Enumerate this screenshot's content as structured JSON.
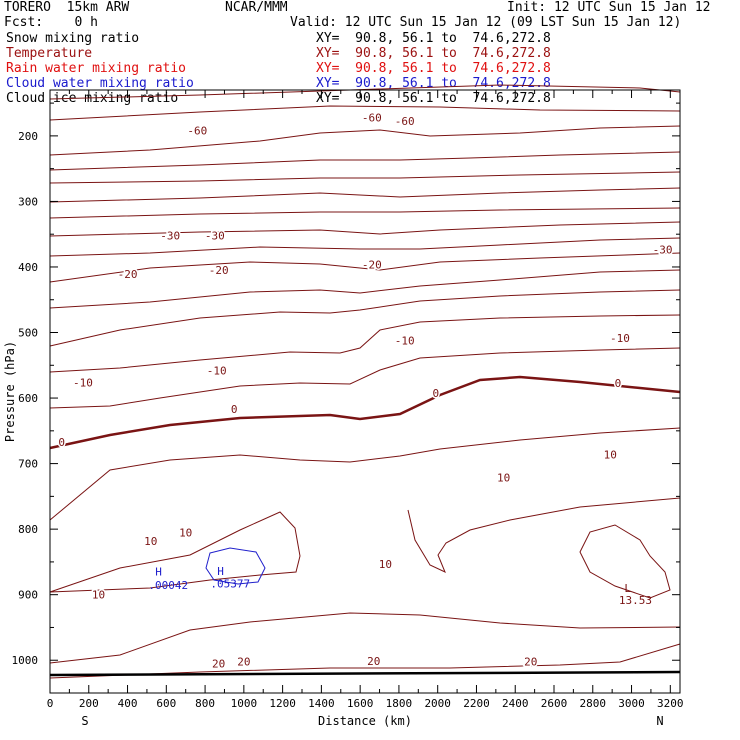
{
  "header": {
    "model": "TORERO  15km ARW",
    "org": "NCAR/MMM",
    "init": "Init: 12 UTC Sun 15 Jan 12",
    "fcst": "Fcst:    0 h",
    "valid": "Valid: 12 UTC Sun 15 Jan 12 (09 LST Sun 15 Jan 12)",
    "fields": [
      {
        "name": "Snow mixing ratio",
        "xy": "XY=  90.8, 56.1 to  74.6,272.8",
        "color": "#000000"
      },
      {
        "name": "Temperature",
        "xy": "XY=  90.8, 56.1 to  74.6,272.8",
        "color": "#9b1010"
      },
      {
        "name": "Rain water mixing ratio",
        "xy": "XY=  90.8, 56.1 to  74.6,272.8",
        "color": "#e01010"
      },
      {
        "name": "Cloud water mixing ratio",
        "xy": "XY=  90.8, 56.1 to  74.6,272.8",
        "color": "#1a1acd"
      },
      {
        "name": "Cloud ice mixing ratio",
        "xy": "XY=  90.8, 56.1 to  74.6,272.8",
        "color": "#000000"
      }
    ]
  },
  "chart_data": {
    "type": "contour",
    "xlabel": "Distance (km)",
    "ylabel": "Pressure (hPa)",
    "xlim": [
      0,
      3250
    ],
    "ylim": [
      1050,
      130
    ],
    "x_ticks": [
      "0",
      "200",
      "400",
      "600",
      "800",
      "1000",
      "1200",
      "1400",
      "1600",
      "1800",
      "2000",
      "2200",
      "2400",
      "2600",
      "2800",
      "3000",
      "3200"
    ],
    "y_ticks": [
      "200",
      "300",
      "400",
      "500",
      "600",
      "700",
      "800",
      "900",
      "1000"
    ],
    "x_endpoints": {
      "left": "S",
      "right": "N"
    },
    "colors": {
      "temperature": "#7a1414",
      "cloud_water": "#2020cc",
      "snow": "#000000"
    },
    "temperature_contour_labels": [
      {
        "text": "-60",
        "x": 760,
        "p": 192
      },
      {
        "text": "-60",
        "x": 1660,
        "p": 172
      },
      {
        "text": "-60",
        "x": 1830,
        "p": 177
      },
      {
        "text": "-30",
        "x": 620,
        "p": 352
      },
      {
        "text": "-30",
        "x": 850,
        "p": 352
      },
      {
        "text": "-30",
        "x": 3160,
        "p": 373
      },
      {
        "text": "-20",
        "x": 400,
        "p": 411
      },
      {
        "text": "-20",
        "x": 870,
        "p": 405
      },
      {
        "text": "-20",
        "x": 1660,
        "p": 396
      },
      {
        "text": "-10",
        "x": 1830,
        "p": 512
      },
      {
        "text": "-10",
        "x": 2940,
        "p": 508
      },
      {
        "text": "-10",
        "x": 860,
        "p": 558
      },
      {
        "text": "-10",
        "x": 170,
        "p": 576
      },
      {
        "text": "0",
        "x": 950,
        "p": 617
      },
      {
        "text": "0",
        "x": 1990,
        "p": 592
      },
      {
        "text": "0",
        "x": 2930,
        "p": 577
      },
      {
        "text": "0",
        "x": 60,
        "p": 667
      },
      {
        "text": "10",
        "x": 2340,
        "p": 721
      },
      {
        "text": "10",
        "x": 2890,
        "p": 686
      },
      {
        "text": "10",
        "x": 520,
        "p": 818
      },
      {
        "text": "10",
        "x": 700,
        "p": 805
      },
      {
        "text": "10",
        "x": 1730,
        "p": 853
      },
      {
        "text": "10",
        "x": 250,
        "p": 900
      },
      {
        "text": "20",
        "x": 870,
        "p": 1005
      },
      {
        "text": "20",
        "x": 1000,
        "p": 1002
      },
      {
        "text": "20",
        "x": 1670,
        "p": 1001
      },
      {
        "text": "20",
        "x": 2480,
        "p": 1002
      }
    ],
    "annotations": [
      {
        "text": "H",
        "x": 560,
        "p": 865,
        "color": "#2020cc"
      },
      {
        "text": ".00042",
        "x": 610,
        "p": 885,
        "color": "#2020cc"
      },
      {
        "text": "H",
        "x": 880,
        "p": 864,
        "color": "#2020cc"
      },
      {
        "text": ".05377",
        "x": 930,
        "p": 883,
        "color": "#2020cc"
      },
      {
        "text": "L",
        "x": 2980,
        "p": 890,
        "color": "#7a1414"
      },
      {
        "text": "13.53",
        "x": 3020,
        "p": 908,
        "color": "#7a1414"
      }
    ]
  }
}
